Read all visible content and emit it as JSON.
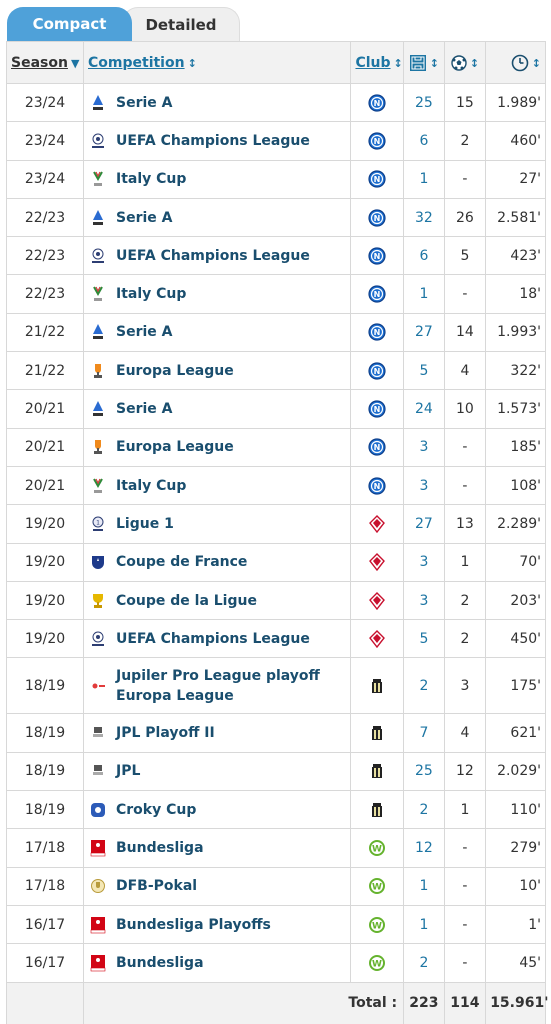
{
  "tabs": {
    "compact": "Compact",
    "detailed": "Detailed"
  },
  "headers": {
    "season": "Season",
    "competition": "Competition",
    "club": "Club",
    "apps_icon": "appearances-icon",
    "goals_icon": "goals-icon",
    "minutes_icon": "clock-icon"
  },
  "rows": [
    {
      "season": "23/24",
      "competition": "Serie A",
      "comp_logo": "serie-a",
      "club": "napoli",
      "apps": "25",
      "goals": "15",
      "minutes": "1.989'"
    },
    {
      "season": "23/24",
      "competition": "UEFA Champions League",
      "comp_logo": "ucl",
      "club": "napoli",
      "apps": "6",
      "goals": "2",
      "minutes": "460'"
    },
    {
      "season": "23/24",
      "competition": "Italy Cup",
      "comp_logo": "coppa-italia",
      "club": "napoli",
      "apps": "1",
      "goals": "-",
      "minutes": "27'"
    },
    {
      "season": "22/23",
      "competition": "Serie A",
      "comp_logo": "serie-a",
      "club": "napoli",
      "apps": "32",
      "goals": "26",
      "minutes": "2.581'"
    },
    {
      "season": "22/23",
      "competition": "UEFA Champions League",
      "comp_logo": "ucl",
      "club": "napoli",
      "apps": "6",
      "goals": "5",
      "minutes": "423'"
    },
    {
      "season": "22/23",
      "competition": "Italy Cup",
      "comp_logo": "coppa-italia",
      "club": "napoli",
      "apps": "1",
      "goals": "-",
      "minutes": "18'"
    },
    {
      "season": "21/22",
      "competition": "Serie A",
      "comp_logo": "serie-a",
      "club": "napoli",
      "apps": "27",
      "goals": "14",
      "minutes": "1.993'"
    },
    {
      "season": "21/22",
      "competition": "Europa League",
      "comp_logo": "uel",
      "club": "napoli",
      "apps": "5",
      "goals": "4",
      "minutes": "322'"
    },
    {
      "season": "20/21",
      "competition": "Serie A",
      "comp_logo": "serie-a",
      "club": "napoli",
      "apps": "24",
      "goals": "10",
      "minutes": "1.573'"
    },
    {
      "season": "20/21",
      "competition": "Europa League",
      "comp_logo": "uel",
      "club": "napoli",
      "apps": "3",
      "goals": "-",
      "minutes": "185'"
    },
    {
      "season": "20/21",
      "competition": "Italy Cup",
      "comp_logo": "coppa-italia",
      "club": "napoli",
      "apps": "3",
      "goals": "-",
      "minutes": "108'"
    },
    {
      "season": "19/20",
      "competition": "Ligue 1",
      "comp_logo": "ligue-1",
      "club": "lille",
      "apps": "27",
      "goals": "13",
      "minutes": "2.289'"
    },
    {
      "season": "19/20",
      "competition": "Coupe de France",
      "comp_logo": "coupe-de-france",
      "club": "lille",
      "apps": "3",
      "goals": "1",
      "minutes": "70'"
    },
    {
      "season": "19/20",
      "competition": "Coupe de la Ligue",
      "comp_logo": "coupe-de-la-ligue",
      "club": "lille",
      "apps": "3",
      "goals": "2",
      "minutes": "203'"
    },
    {
      "season": "19/20",
      "competition": "UEFA Champions League",
      "comp_logo": "ucl",
      "club": "lille",
      "apps": "5",
      "goals": "2",
      "minutes": "450'"
    },
    {
      "season": "18/19",
      "competition": "Jupiler Pro League playoff Europa League",
      "comp_logo": "jpl-playoff",
      "club": "charleroi",
      "apps": "2",
      "goals": "3",
      "minutes": "175'"
    },
    {
      "season": "18/19",
      "competition": "JPL Playoff II",
      "comp_logo": "jpl",
      "club": "charleroi",
      "apps": "7",
      "goals": "4",
      "minutes": "621'"
    },
    {
      "season": "18/19",
      "competition": "JPL",
      "comp_logo": "jpl",
      "club": "charleroi",
      "apps": "25",
      "goals": "12",
      "minutes": "2.029'"
    },
    {
      "season": "18/19",
      "competition": "Croky Cup",
      "comp_logo": "croky-cup",
      "club": "charleroi",
      "apps": "2",
      "goals": "1",
      "minutes": "110'"
    },
    {
      "season": "17/18",
      "competition": "Bundesliga",
      "comp_logo": "bundesliga",
      "club": "wolfsburg",
      "apps": "12",
      "goals": "-",
      "minutes": "279'"
    },
    {
      "season": "17/18",
      "competition": "DFB-Pokal",
      "comp_logo": "dfb-pokal",
      "club": "wolfsburg",
      "apps": "1",
      "goals": "-",
      "minutes": "10'"
    },
    {
      "season": "16/17",
      "competition": "Bundesliga Playoffs",
      "comp_logo": "bundesliga",
      "club": "wolfsburg",
      "apps": "1",
      "goals": "-",
      "minutes": "1'"
    },
    {
      "season": "16/17",
      "competition": "Bundesliga",
      "comp_logo": "bundesliga",
      "club": "wolfsburg",
      "apps": "2",
      "goals": "-",
      "minutes": "45'"
    }
  ],
  "totals": {
    "label": "Total :",
    "apps": "223",
    "goals": "114",
    "minutes": "15.961'"
  },
  "colors": {
    "tab_active": "#4fa1d9",
    "link": "#1d75a3",
    "comp_text": "#1a4e6e"
  }
}
